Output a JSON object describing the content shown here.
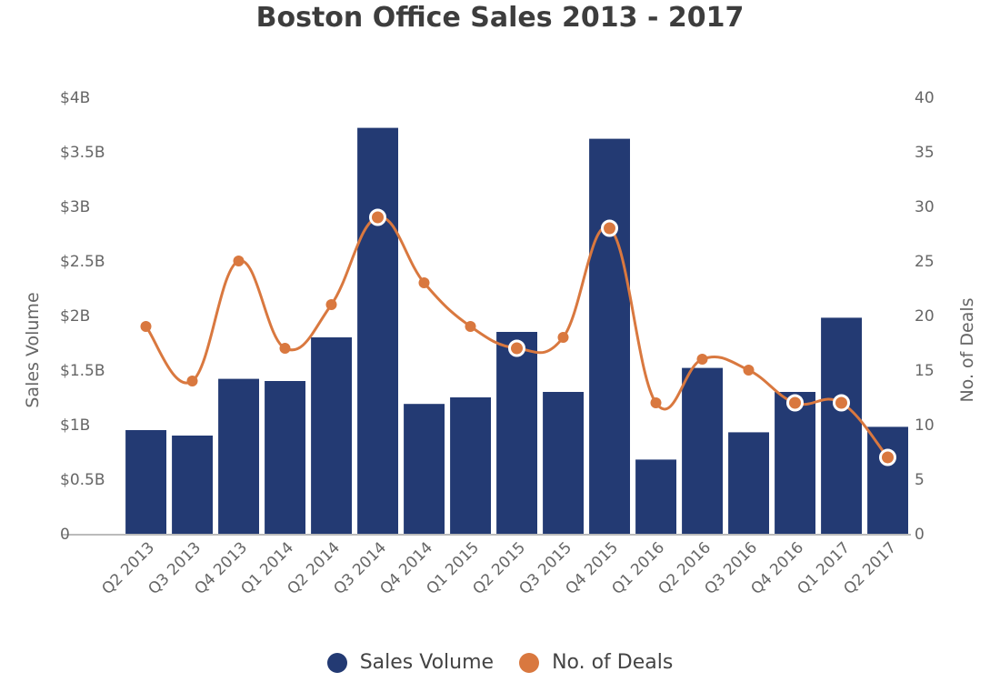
{
  "chart_data": {
    "type": "bar",
    "title": "Boston Office Sales 2013 - 2017",
    "categories": [
      "Q2 2013",
      "Q3 2013",
      "Q4 2013",
      "Q1 2014",
      "Q2 2014",
      "Q3 2014",
      "Q4 2014",
      "Q1 2015",
      "Q2 2015",
      "Q3 2015",
      "Q4 2015",
      "Q1 2016",
      "Q2 2016",
      "Q3 2016",
      "Q4 2016",
      "Q1 2017",
      "Q2 2017"
    ],
    "series": [
      {
        "name": "Sales Volume",
        "type": "bar",
        "axis": "left",
        "color": "#233a73",
        "values": [
          0.95,
          0.9,
          1.42,
          1.4,
          1.8,
          3.72,
          1.19,
          1.25,
          1.85,
          1.3,
          3.62,
          0.68,
          1.52,
          0.93,
          1.3,
          1.98,
          0.98
        ]
      },
      {
        "name": "No. of Deals",
        "type": "line",
        "axis": "right",
        "color": "#d9783f",
        "values": [
          19,
          14,
          25,
          17,
          21,
          29,
          23,
          19,
          17,
          18,
          28,
          12,
          16,
          15,
          12,
          12,
          7
        ]
      }
    ],
    "ylabel": "Sales Volume",
    "ylim": [
      0,
      4
    ],
    "yticks": [
      "0",
      "$0.5B",
      "$1B",
      "$1.5B",
      "$2B",
      "$2.5B",
      "$3B",
      "$3.5B",
      "$4B"
    ],
    "y2label": "No. of Deals",
    "y2lim": [
      0,
      40
    ],
    "y2ticks": [
      "0",
      "5",
      "10",
      "15",
      "20",
      "25",
      "30",
      "35",
      "40"
    ],
    "highlighted_points": [
      5,
      8,
      10,
      14,
      15,
      16
    ],
    "grid": false,
    "legend_position": "bottom-center"
  }
}
